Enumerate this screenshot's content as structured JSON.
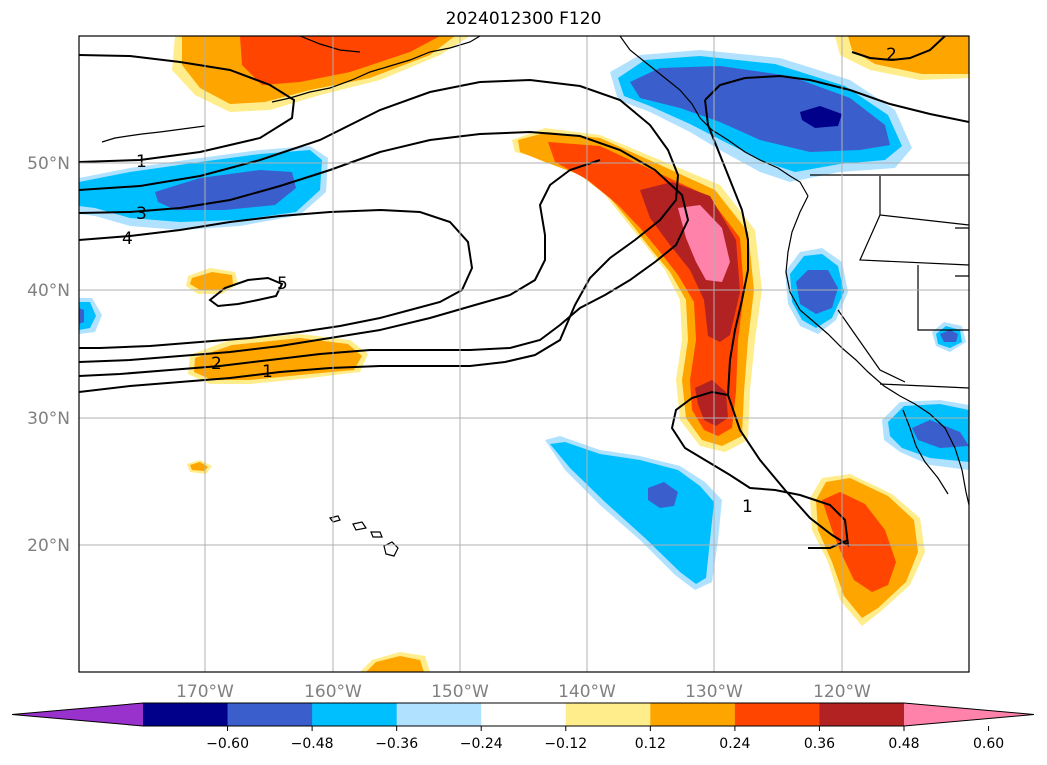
{
  "title": "2024012300 F120",
  "lat_labels": [
    "50°N",
    "40°N",
    "30°N",
    "20°N"
  ],
  "lon_labels": [
    "170°W",
    "160°W",
    "150°W",
    "140°W",
    "130°W",
    "120°W"
  ],
  "colorbar": {
    "labels": [
      "−0.60",
      "−0.48",
      "−0.36",
      "−0.24",
      "−0.12",
      "0.12",
      "0.24",
      "0.36",
      "0.48",
      "0.60"
    ],
    "colors": [
      "#9932cc",
      "#00008b",
      "#3a5fcd",
      "#00bfff",
      "#b0e2ff",
      "#ffffff",
      "#ffec8b",
      "#ffa500",
      "#ff4500",
      "#b22222",
      "#ff82ab"
    ]
  },
  "contour_labels": [
    "1",
    "3",
    "4",
    "5",
    "2",
    "1",
    "1",
    "2"
  ],
  "colors": {
    "neg_strong": "#00008b",
    "neg_med": "#3a5fcd",
    "neg_light": "#00bfff",
    "neg_faint": "#b0e2ff",
    "pos_faint": "#ffec8b",
    "pos_light": "#ffa500",
    "pos_med": "#ff4500",
    "pos_strong": "#b22222",
    "pos_max": "#ff82ab"
  }
}
